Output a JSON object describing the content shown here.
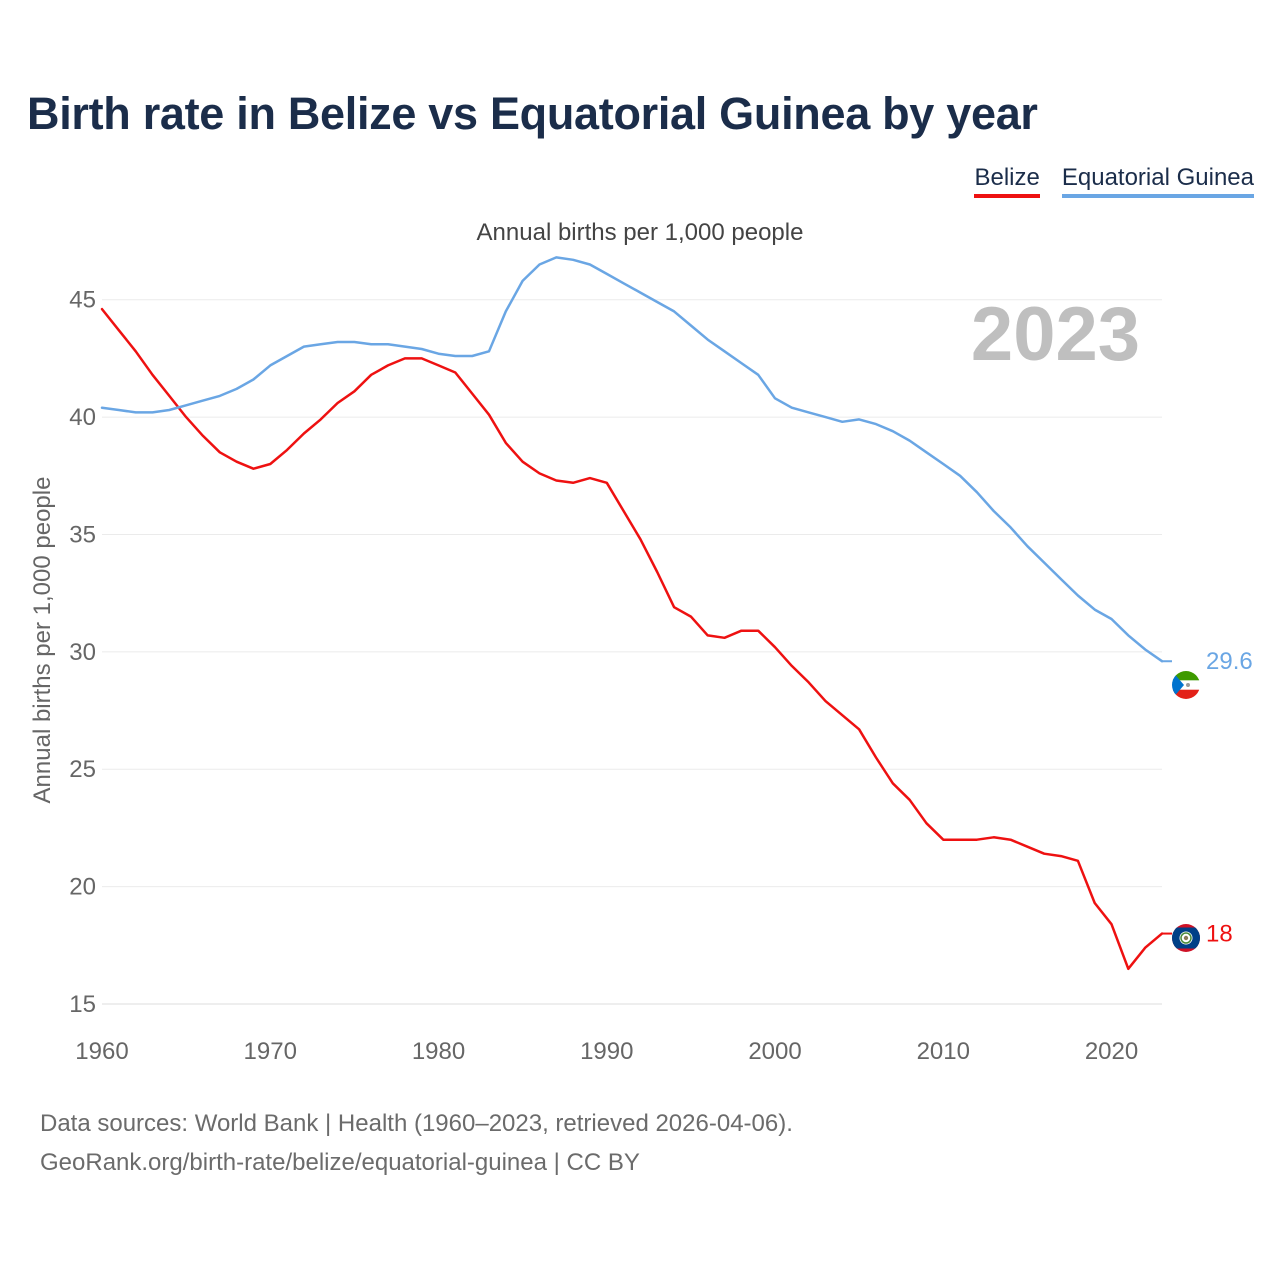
{
  "title": "Birth rate in Belize vs Equatorial Guinea by year",
  "legend": [
    {
      "label": "Belize",
      "color": "#ee1111"
    },
    {
      "label": "Equatorial Guinea",
      "color": "#6aa6e4"
    }
  ],
  "footer": {
    "source": "Data sources: World Bank | Health (1960–2023, retrieved 2026-04-06).",
    "credit": "GeoRank.org/birth-rate/belize/equatorial-guinea | CC BY"
  },
  "chart_data": {
    "type": "line",
    "subtitle": "Annual births per 1,000 people",
    "ylabel": "Annual births per 1,000 people",
    "xlabel": "",
    "year_label": "2023",
    "xlim": [
      1960,
      2023
    ],
    "ylim": [
      15,
      47.5
    ],
    "x_ticks": [
      1960,
      1970,
      1980,
      1990,
      2000,
      2010,
      2020
    ],
    "y_ticks": [
      15,
      20,
      25,
      30,
      35,
      40,
      45
    ],
    "x": [
      1960,
      1961,
      1962,
      1963,
      1964,
      1965,
      1966,
      1967,
      1968,
      1969,
      1970,
      1971,
      1972,
      1973,
      1974,
      1975,
      1976,
      1977,
      1978,
      1979,
      1980,
      1981,
      1982,
      1983,
      1984,
      1985,
      1986,
      1987,
      1988,
      1989,
      1990,
      1991,
      1992,
      1993,
      1994,
      1995,
      1996,
      1997,
      1998,
      1999,
      2000,
      2001,
      2002,
      2003,
      2004,
      2005,
      2006,
      2007,
      2008,
      2009,
      2010,
      2011,
      2012,
      2013,
      2014,
      2015,
      2016,
      2017,
      2018,
      2019,
      2020,
      2021,
      2022,
      2023
    ],
    "series": [
      {
        "name": "Belize",
        "color": "#ee1111",
        "end_label": "18",
        "values": [
          44.6,
          43.7,
          42.8,
          41.8,
          40.9,
          40.0,
          39.2,
          38.5,
          38.1,
          37.8,
          38.0,
          38.6,
          39.3,
          39.9,
          40.6,
          41.1,
          41.8,
          42.2,
          42.5,
          42.5,
          42.2,
          41.9,
          41.0,
          40.1,
          38.9,
          38.1,
          37.6,
          37.3,
          37.2,
          37.4,
          37.2,
          36.0,
          34.8,
          33.4,
          31.9,
          31.5,
          30.7,
          30.6,
          30.9,
          30.9,
          30.2,
          29.4,
          28.7,
          27.9,
          27.3,
          26.7,
          25.5,
          24.4,
          23.7,
          22.7,
          22.0,
          22.0,
          22.0,
          22.1,
          22.0,
          21.7,
          21.4,
          21.3,
          21.1,
          19.3,
          18.4,
          16.5,
          17.4,
          18.0
        ]
      },
      {
        "name": "Equatorial Guinea",
        "color": "#6aa6e4",
        "end_label": "29.6",
        "values": [
          40.4,
          40.3,
          40.2,
          40.2,
          40.3,
          40.5,
          40.7,
          40.9,
          41.2,
          41.6,
          42.2,
          42.6,
          43.0,
          43.1,
          43.2,
          43.2,
          43.1,
          43.1,
          43.0,
          42.9,
          42.7,
          42.6,
          42.6,
          42.8,
          44.5,
          45.8,
          46.5,
          46.8,
          46.7,
          46.5,
          46.1,
          45.7,
          45.3,
          44.9,
          44.5,
          43.9,
          43.3,
          42.8,
          42.3,
          41.8,
          40.8,
          40.4,
          40.2,
          40.0,
          39.8,
          39.9,
          39.7,
          39.4,
          39.0,
          38.5,
          38.0,
          37.5,
          36.8,
          36.0,
          35.3,
          34.5,
          33.8,
          33.1,
          32.4,
          31.8,
          31.4,
          30.7,
          30.1,
          29.6
        ]
      }
    ]
  }
}
